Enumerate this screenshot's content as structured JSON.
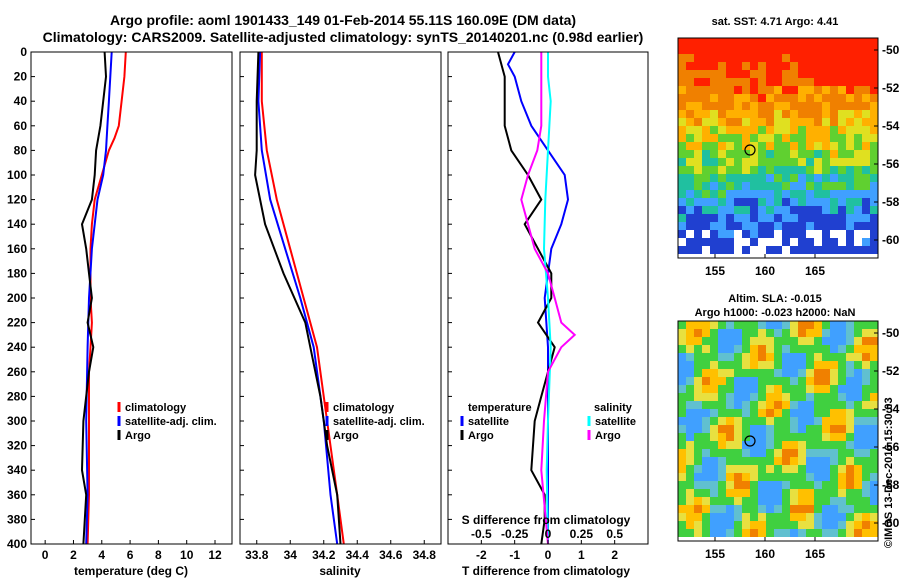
{
  "header": {
    "title1": "Argo profile: aoml 1901433_149 01-Feb-2014 55.11S 160.09E (DM data)",
    "title2": "Climatology: CARS2009. Satellite-adjusted climatology: synTS_20140201.nc (0.98d earlier)"
  },
  "colors": {
    "climatology": "#ff0000",
    "satellite": "#0000ff",
    "argo": "#000000",
    "sat_salinity": "#00ffff",
    "argo_salinity": "#ff00ff"
  },
  "chart_data": [
    {
      "type": "line",
      "id": "temperature",
      "xlabel": "temperature (deg C)",
      "xlim": [
        -1,
        13.2
      ],
      "xticks": [
        "0",
        "2",
        "4",
        "6",
        "8",
        "10",
        "12"
      ],
      "ylim": [
        0,
        400
      ],
      "yticks": [
        "0",
        "20",
        "40",
        "60",
        "80",
        "100",
        "120",
        "140",
        "160",
        "180",
        "200",
        "220",
        "240",
        "260",
        "280",
        "300",
        "320",
        "340",
        "360",
        "380",
        "400"
      ],
      "legend": [
        "climatology",
        "satellite-adj. clim.",
        "Argo"
      ],
      "series": [
        {
          "name": "climatology",
          "color": "#ff0000",
          "points": [
            [
              5.7,
              0
            ],
            [
              5.6,
              20
            ],
            [
              5.4,
              40
            ],
            [
              5.2,
              60
            ],
            [
              4.9,
              70
            ],
            [
              4.5,
              80
            ],
            [
              4.0,
              100
            ],
            [
              3.5,
              120
            ],
            [
              3.3,
              140
            ],
            [
              3.2,
              160
            ],
            [
              3.2,
              200
            ],
            [
              3.3,
              220
            ],
            [
              3.2,
              240
            ],
            [
              3.1,
              260
            ],
            [
              3.1,
              300
            ],
            [
              3.1,
              360
            ],
            [
              3.0,
              400
            ]
          ]
        },
        {
          "name": "satellite-adj. clim.",
          "color": "#0000ff",
          "points": [
            [
              4.7,
              0
            ],
            [
              4.6,
              20
            ],
            [
              4.5,
              40
            ],
            [
              4.4,
              60
            ],
            [
              4.3,
              80
            ],
            [
              4.1,
              100
            ],
            [
              3.7,
              120
            ],
            [
              3.5,
              140
            ],
            [
              3.3,
              160
            ],
            [
              3.1,
              200
            ],
            [
              3.0,
              240
            ],
            [
              2.9,
              300
            ],
            [
              3.0,
              360
            ],
            [
              2.9,
              400
            ]
          ]
        },
        {
          "name": "Argo",
          "color": "#000000",
          "points": [
            [
              4.2,
              0
            ],
            [
              4.3,
              20
            ],
            [
              4.1,
              40
            ],
            [
              3.9,
              60
            ],
            [
              3.6,
              80
            ],
            [
              3.5,
              100
            ],
            [
              3.3,
              120
            ],
            [
              2.6,
              140
            ],
            [
              2.9,
              160
            ],
            [
              3.1,
              180
            ],
            [
              3.3,
              200
            ],
            [
              3.0,
              220
            ],
            [
              3.4,
              240
            ],
            [
              3.1,
              260
            ],
            [
              2.9,
              280
            ],
            [
              2.7,
              300
            ],
            [
              2.6,
              340
            ],
            [
              2.9,
              360
            ],
            [
              2.8,
              380
            ],
            [
              2.7,
              400
            ]
          ]
        }
      ]
    },
    {
      "type": "line",
      "id": "salinity",
      "xlabel": "salinity",
      "xlim": [
        33.7,
        34.9
      ],
      "xticks": [
        "33.8",
        "34",
        "34.2",
        "34.4",
        "34.6",
        "34.8"
      ],
      "ylim": [
        0,
        400
      ],
      "legend": [
        "climatology",
        "satellite-adj. clim.",
        "Argo"
      ],
      "series": [
        {
          "name": "climatology",
          "color": "#ff0000",
          "points": [
            [
              33.83,
              0
            ],
            [
              33.83,
              40
            ],
            [
              33.86,
              80
            ],
            [
              33.92,
              120
            ],
            [
              34.0,
              160
            ],
            [
              34.08,
              200
            ],
            [
              34.16,
              240
            ],
            [
              34.22,
              300
            ],
            [
              34.28,
              360
            ],
            [
              34.32,
              400
            ]
          ]
        },
        {
          "name": "satellite-adj. clim.",
          "color": "#0000ff",
          "points": [
            [
              33.82,
              0
            ],
            [
              33.81,
              40
            ],
            [
              33.83,
              80
            ],
            [
              33.88,
              120
            ],
            [
              33.97,
              160
            ],
            [
              34.06,
              200
            ],
            [
              34.14,
              240
            ],
            [
              34.2,
              300
            ],
            [
              34.24,
              360
            ],
            [
              34.28,
              400
            ]
          ]
        },
        {
          "name": "Argo",
          "color": "#000000",
          "points": [
            [
              33.81,
              0
            ],
            [
              33.8,
              40
            ],
            [
              33.8,
              80
            ],
            [
              33.79,
              100
            ],
            [
              33.85,
              140
            ],
            [
              33.96,
              180
            ],
            [
              34.09,
              220
            ],
            [
              34.12,
              240
            ],
            [
              34.18,
              280
            ],
            [
              34.22,
              320
            ],
            [
              34.28,
              360
            ],
            [
              34.3,
              400
            ]
          ]
        }
      ]
    },
    {
      "type": "line",
      "id": "difference",
      "xlabel": "T difference from climatology",
      "xlabel2": "S difference from climatology",
      "xlim": [
        -3,
        3
      ],
      "xticks": [
        "-2",
        "-1",
        "0",
        "1",
        "2"
      ],
      "xticks2": [
        "-0.5",
        "-0.25",
        "0",
        "0.25",
        "0.5"
      ],
      "ylim": [
        0,
        400
      ],
      "legend_left_title": "temperature",
      "legend_right_title": "salinity",
      "legend_left": [
        "satellite",
        "Argo"
      ],
      "legend_right": [
        "satellite",
        "Argo"
      ],
      "series": [
        {
          "name": "T satellite",
          "color": "#0000ff",
          "points": [
            [
              -1.0,
              0
            ],
            [
              -1.2,
              10
            ],
            [
              -1.0,
              20
            ],
            [
              -0.8,
              40
            ],
            [
              -0.5,
              60
            ],
            [
              0,
              80
            ],
            [
              0.5,
              100
            ],
            [
              0.6,
              120
            ],
            [
              0.4,
              140
            ],
            [
              0.1,
              160
            ],
            [
              -0.1,
              200
            ],
            [
              0,
              240
            ],
            [
              0,
              300
            ],
            [
              0,
              360
            ],
            [
              0,
              400
            ]
          ]
        },
        {
          "name": "T Argo",
          "color": "#000000",
          "points": [
            [
              -1.5,
              0
            ],
            [
              -1.3,
              20
            ],
            [
              -1.3,
              40
            ],
            [
              -1.3,
              60
            ],
            [
              -1.1,
              80
            ],
            [
              -0.6,
              100
            ],
            [
              -0.2,
              120
            ],
            [
              -0.7,
              140
            ],
            [
              -0.3,
              160
            ],
            [
              0.1,
              180
            ],
            [
              0.1,
              200
            ],
            [
              -0.3,
              220
            ],
            [
              0.2,
              240
            ],
            [
              0,
              260
            ],
            [
              -0.2,
              280
            ],
            [
              -0.4,
              300
            ],
            [
              -0.5,
              340
            ],
            [
              -0.1,
              360
            ],
            [
              -0.1,
              380
            ],
            [
              -0.2,
              400
            ]
          ]
        },
        {
          "name": "S satellite",
          "color": "#00ffff",
          "points": [
            [
              0,
              0
            ],
            [
              0,
              20
            ],
            [
              0.02,
              40
            ],
            [
              0,
              80
            ],
            [
              -0.02,
              120
            ],
            [
              -0.03,
              160
            ],
            [
              0,
              200
            ],
            [
              0.02,
              240
            ],
            [
              0,
              300
            ],
            [
              -0.01,
              340
            ],
            [
              0,
              400
            ]
          ]
        },
        {
          "name": "S Argo",
          "color": "#ff00ff",
          "points": [
            [
              -0.05,
              0
            ],
            [
              -0.05,
              20
            ],
            [
              -0.05,
              40
            ],
            [
              -0.05,
              60
            ],
            [
              -0.08,
              80
            ],
            [
              -0.15,
              100
            ],
            [
              -0.2,
              120
            ],
            [
              -0.15,
              140
            ],
            [
              -0.1,
              160
            ],
            [
              0,
              180
            ],
            [
              0.05,
              200
            ],
            [
              0.1,
              220
            ],
            [
              0.2,
              230
            ],
            [
              0.1,
              240
            ],
            [
              0,
              260
            ],
            [
              -0.03,
              300
            ],
            [
              -0.05,
              340
            ],
            [
              0,
              400
            ]
          ]
        }
      ]
    },
    {
      "type": "heatmap",
      "id": "sst",
      "title": "sat. SST: 4.71 Argo: 4.41",
      "xticks": [
        "155",
        "160",
        "165"
      ],
      "yticks": [
        "-50",
        "-52",
        "-54",
        "-56",
        "-58",
        "-60"
      ],
      "marker": [
        160.09,
        -55.11
      ]
    },
    {
      "type": "heatmap",
      "id": "sla",
      "title": "Altim. SLA: -0.015",
      "subtitle": "Argo h1000: -0.023 h2000: NaN",
      "xticks": [
        "155",
        "160",
        "165"
      ],
      "yticks": [
        "-50",
        "-52",
        "-54",
        "-56",
        "-58",
        "-60"
      ],
      "marker": [
        160.09,
        -55.11
      ]
    }
  ],
  "footer": {
    "credit": "©IMOS 13-Dec-2016 15:30:03"
  }
}
